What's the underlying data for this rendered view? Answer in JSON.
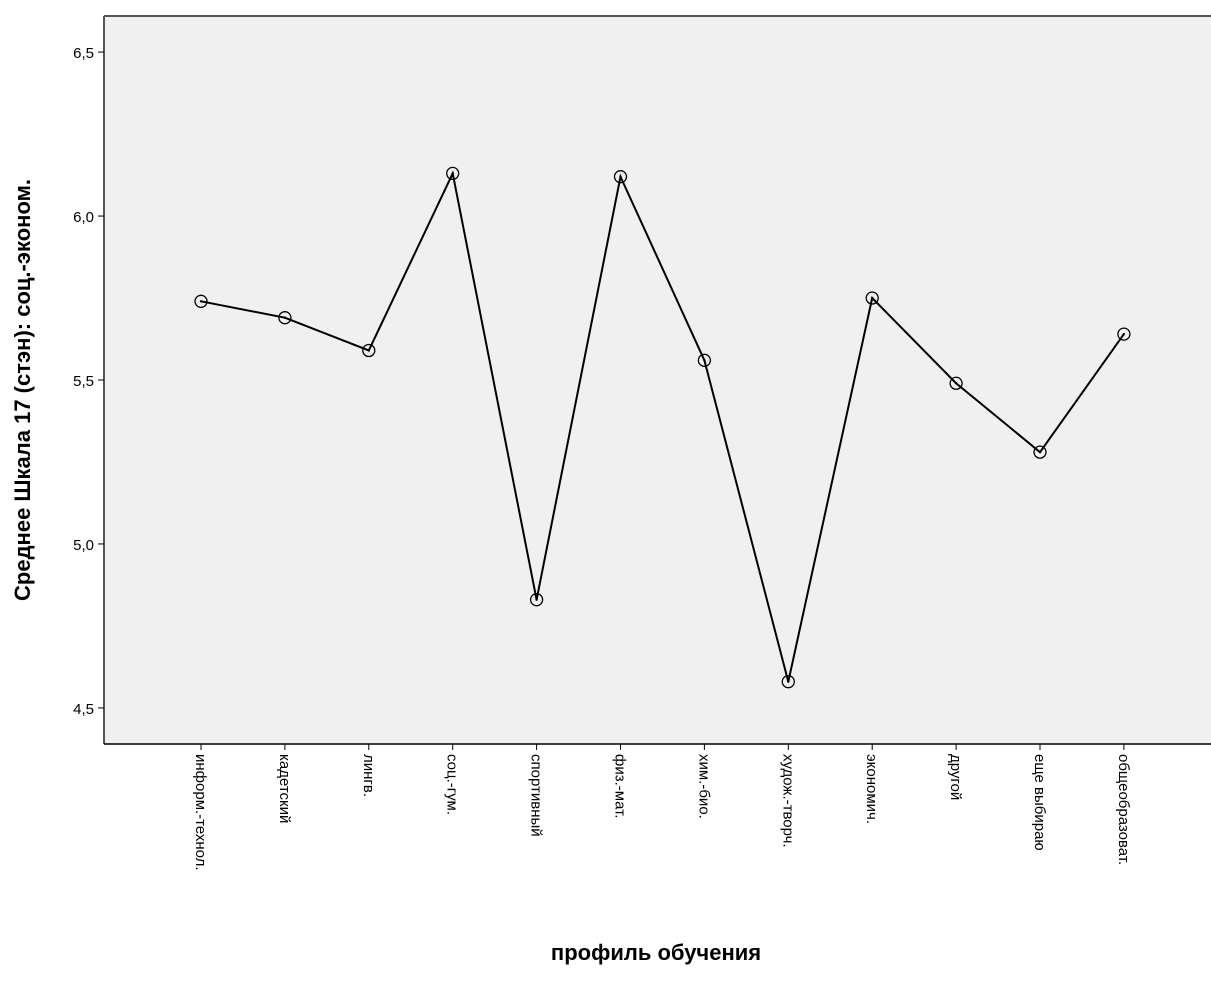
{
  "chart_data": {
    "type": "line",
    "title": "",
    "xlabel": "профиль обучения",
    "ylabel": "Среднее Шкала 17 (стэн): соц.-эконом.",
    "categories": [
      "информ.-технол.",
      "кадетский",
      "лингв.",
      "соц.-гум.",
      "спортивный",
      "физ.-мат.",
      "хим.-био.",
      "худож.-творч.",
      "экономич.",
      "другой",
      "еще выбираю",
      "общеобразоват."
    ],
    "series": [
      {
        "values": [
          5.74,
          5.69,
          5.59,
          6.13,
          4.83,
          6.12,
          5.56,
          4.58,
          5.75,
          5.49,
          5.28,
          5.64
        ]
      }
    ],
    "ylim": [
      4.39,
      6.61
    ],
    "yticks": [
      4.5,
      5.0,
      5.5,
      6.0,
      6.5
    ],
    "ytick_labels": [
      "4,5",
      "5,0",
      "5,5",
      "6,0",
      "6,5"
    ],
    "grid": false,
    "legend": "none",
    "colors": {
      "plot_background": "#f0f0f0",
      "line": "#000000",
      "frame": "#555555"
    }
  }
}
